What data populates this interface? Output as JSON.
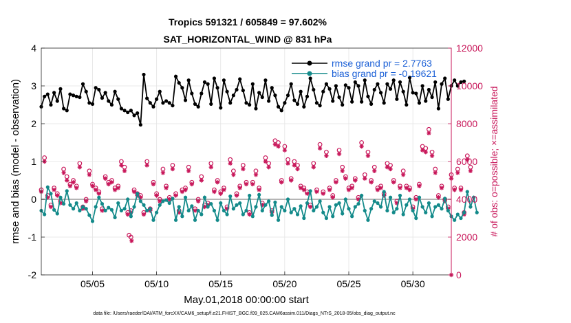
{
  "chart_data": {
    "type": "line",
    "title": "Tropics 591321 / 605849 = 97.602%",
    "subtitle": "SAT_HORIZONTAL_WIND @ 831 hPa",
    "xlabel": "May.01,2018 00:00:00 start",
    "ylabel": "rmse and bias (model - observation)",
    "ylabel_right": "# of obs: o=possible; ×=assimilated",
    "footer": "data file: /Users/raeder/DAI/ATM_forcXX/CAM6_setup/f.e21.FHIST_BGC.f09_025.CAM6assim.011/Diags_NTrS_2018-05/obs_diag_output.nc",
    "xlim": [
      1,
      33
    ],
    "ylim": [
      -2,
      4
    ],
    "ylim_right": [
      0,
      12000
    ],
    "x_ticks": [
      5,
      10,
      15,
      20,
      25,
      30
    ],
    "x_tick_labels": [
      "05/05",
      "05/10",
      "05/15",
      "05/20",
      "05/25",
      "05/30"
    ],
    "y_ticks": [
      -2,
      -1,
      0,
      1,
      2,
      3,
      4
    ],
    "y_tick_labels": [
      "-2",
      "-1",
      "0",
      "1",
      "2",
      "3",
      "4"
    ],
    "y_ticks_right": [
      0,
      2000,
      4000,
      6000,
      8000,
      10000,
      12000
    ],
    "y_tick_labels_right": [
      "0",
      "2000",
      "4000",
      "6000",
      "8000",
      "10000",
      "12000"
    ],
    "x_start": 1.0,
    "x_step": 0.25,
    "series": [
      {
        "name": "rmse grand pr = 2.7763",
        "color": "#000000",
        "marker": "dot",
        "values": [
          2.45,
          2.72,
          2.78,
          2.5,
          2.82,
          2.6,
          2.92,
          2.4,
          2.35,
          2.78,
          2.75,
          2.72,
          2.7,
          3.05,
          2.85,
          2.55,
          2.52,
          2.95,
          2.9,
          2.68,
          2.82,
          2.6,
          2.5,
          2.85,
          2.65,
          2.4,
          2.35,
          2.3,
          2.35,
          2.22,
          2.28,
          1.97,
          3.3,
          2.67,
          2.55,
          2.45,
          2.65,
          2.85,
          2.55,
          2.6,
          2.55,
          2.48,
          3.25,
          3.08,
          2.95,
          2.62,
          3.15,
          2.8,
          2.52,
          2.45,
          2.8,
          3.1,
          3.05,
          2.52,
          3.2,
          2.95,
          2.42,
          3.15,
          2.85,
          2.55,
          2.75,
          2.9,
          3.18,
          2.88,
          2.55,
          2.5,
          3.05,
          2.4,
          2.82,
          2.7,
          3.15,
          2.6,
          2.95,
          2.75,
          2.45,
          2.35,
          2.55,
          2.75,
          3.05,
          2.62,
          2.52,
          2.85,
          2.45,
          2.72,
          3.2,
          2.9,
          2.55,
          2.48,
          2.85,
          3.05,
          2.92,
          2.6,
          3.0,
          2.7,
          2.5,
          3.02,
          2.95,
          2.58,
          3.1,
          3.0,
          2.58,
          3.15,
          2.72,
          2.52,
          2.9,
          3.05,
          2.82,
          2.55,
          3.05,
          2.92,
          3.15,
          2.65,
          3.1,
          2.85,
          2.5,
          3.22,
          2.82,
          2.8,
          2.55,
          3.0,
          2.6,
          2.9,
          2.7,
          3.1,
          2.4,
          3.05,
          3.2,
          2.65,
          3.0,
          3.15,
          3.0,
          3.1,
          3.12
        ]
      },
      {
        "name": "bias grand pr = -0.19621",
        "color": "#138a8a",
        "marker": "dot",
        "values": [
          -0.3,
          -0.4,
          0.32,
          0.15,
          -0.28,
          -0.38,
          0.05,
          -0.12,
          0.22,
          -0.15,
          -0.25,
          -0.1,
          -0.3,
          -0.2,
          -0.25,
          -0.42,
          -0.58,
          -0.2,
          0.05,
          -0.12,
          -0.3,
          -0.22,
          -0.28,
          -0.48,
          -0.1,
          -0.3,
          -0.25,
          0.0,
          -0.45,
          -0.2,
          0.15,
          -0.05,
          -0.15,
          -0.3,
          -0.25,
          -0.55,
          -0.35,
          -0.15,
          -0.05,
          -0.02,
          -0.1,
          0.02,
          -0.55,
          -0.2,
          -0.45,
          0.05,
          -0.3,
          -0.18,
          -0.55,
          -0.3,
          -0.4,
          0.05,
          -0.2,
          -0.12,
          -0.3,
          -0.55,
          -0.1,
          -0.3,
          -0.4,
          0.08,
          -0.25,
          -0.15,
          -0.1,
          -0.4,
          -0.3,
          0.1,
          -0.45,
          -0.2,
          0.12,
          -0.3,
          -0.15,
          -0.05,
          -0.42,
          -0.08,
          -0.55,
          -0.2,
          -0.3,
          0.0,
          -0.35,
          -0.25,
          -0.4,
          -0.18,
          -0.5,
          -0.1,
          0.22,
          -0.3,
          -0.2,
          -0.05,
          -0.35,
          -0.5,
          -0.2,
          -0.45,
          -0.15,
          -0.1,
          -0.38,
          0.0,
          -0.25,
          -0.45,
          -0.2,
          -0.12,
          0.1,
          -0.3,
          -0.55,
          -0.25,
          -0.05,
          -0.1,
          -0.2,
          0.2,
          -0.3,
          0.05,
          -0.35,
          -0.25,
          0.1,
          -0.4,
          -0.15,
          0.0,
          -0.3,
          -0.5,
          0.05,
          -0.2,
          -0.35,
          -0.1,
          -0.45,
          -0.2,
          -0.15,
          -0.25,
          0.02,
          -0.3,
          -0.45,
          -0.55,
          -0.4,
          -0.5,
          -0.35,
          0.2,
          -0.2,
          0.05,
          -0.35
        ]
      },
      {
        "name": "# of obs possible",
        "color": "#c8175a",
        "marker": "circle",
        "axis": "right",
        "values": [
          4500,
          6200,
          4200,
          3700,
          4600,
          4300,
          3900,
          5600,
          5200,
          4800,
          5000,
          4700,
          5900,
          3600,
          4000,
          5500,
          4800,
          4600,
          4400,
          3500,
          5200,
          4900,
          5000,
          4600,
          4700,
          6000,
          5700,
          3300,
          3400,
          4500,
          4300,
          4200,
          3300,
          6000,
          3500,
          4900,
          4300,
          4000,
          5600,
          4700,
          4100,
          5800,
          4300,
          3400,
          4500,
          4600,
          5700,
          4900,
          3500,
          4000,
          5200,
          3700,
          3800,
          5900,
          4500,
          5000,
          4400,
          4600,
          3600,
          6100,
          5500,
          4300,
          4700,
          5800,
          4900,
          3300,
          4900,
          5500,
          4600,
          3800,
          6200,
          5900,
          3400,
          7100,
          7000,
          5000,
          6800,
          6100,
          5100,
          6000,
          5800,
          4700,
          4600,
          4400,
          3700,
          5900,
          4500,
          6900,
          4400,
          6500,
          4600,
          4200,
          5000,
          6600,
          5700,
          5200,
          4600,
          4700,
          5100,
          4100,
          7000,
          5300,
          6500,
          5000,
          5700,
          4600,
          4700,
          4300,
          5900,
          5800,
          5000,
          3900,
          4700,
          5500,
          4700,
          4600,
          3600,
          4100,
          4800,
          6800,
          6700,
          7700,
          6500,
          5600,
          4200,
          4700,
          4000,
          3600,
          5300,
          4600,
          5600,
          4600,
          3300,
          6300,
          5700
        ]
      },
      {
        "name": "# of obs assimilated",
        "color": "#c8175a",
        "marker": "star",
        "axis": "right",
        "values": [
          4400,
          6000,
          4100,
          3600,
          4500,
          4200,
          3800,
          5400,
          5000,
          4700,
          4900,
          4600,
          5700,
          3500,
          3900,
          5300,
          4700,
          4500,
          4300,
          3400,
          5100,
          4800,
          4900,
          4500,
          4600,
          5800,
          5500,
          3200,
          3300,
          4400,
          4200,
          4100,
          3200,
          5800,
          3400,
          4800,
          4200,
          3900,
          5400,
          4600,
          4000,
          5600,
          4200,
          3300,
          4400,
          4500,
          5500,
          4800,
          3400,
          3900,
          5000,
          3600,
          3700,
          5700,
          4400,
          4900,
          4300,
          4500,
          3500,
          5900,
          5300,
          4200,
          4600,
          5600,
          4800,
          3200,
          4800,
          5300,
          4500,
          3700,
          6000,
          5700,
          3300,
          6900,
          6800,
          4900,
          6600,
          5900,
          5000,
          5800,
          5600,
          4600,
          4500,
          4300,
          3600,
          5700,
          4400,
          6700,
          4300,
          6300,
          4500,
          4100,
          4900,
          6400,
          5500,
          5100,
          4500,
          4600,
          5000,
          4000,
          6800,
          5100,
          6300,
          4900,
          5500,
          4500,
          4600,
          4200,
          5700,
          5600,
          4900,
          3800,
          4600,
          5300,
          4600,
          4500,
          3500,
          4000,
          4700,
          6600,
          6500,
          7500,
          6300,
          5400,
          4100,
          4600,
          3900,
          3500,
          5100,
          4500,
          5400,
          4500,
          3200,
          6100,
          5500
        ]
      }
    ],
    "extra_points": [
      {
        "series": "# of obs possible",
        "x": 8.0,
        "value": 2000
      },
      {
        "series": "# of obs assimilated",
        "x": 8.05,
        "value": 1800
      },
      {
        "series": "# of obs possible",
        "x": 7.85,
        "value": 2100
      },
      {
        "series": "# of obs assimilated",
        "x": 33.0,
        "value": 0
      }
    ],
    "legend": {
      "position": "top-right",
      "entries": [
        "rmse grand pr = 2.7763",
        "bias grand pr = -0.19621"
      ]
    }
  }
}
